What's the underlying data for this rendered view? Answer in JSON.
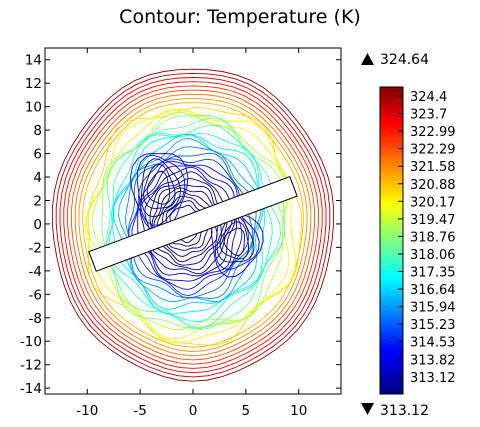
{
  "chart_data": {
    "type": "contour",
    "title": "Contour: Temperature (K)",
    "x_ticks": [
      "-10",
      "-5",
      "0",
      "5",
      "10"
    ],
    "y_ticks": [
      "14",
      "12",
      "10",
      "8",
      "6",
      "4",
      "2",
      "0",
      "-2",
      "-4",
      "-6",
      "-8",
      "-10",
      "-12",
      "-14"
    ],
    "xlim": [
      -14,
      14
    ],
    "ylim": [
      -14.5,
      15
    ],
    "domain": {
      "shape": "circle",
      "radius": 13.3,
      "center": [
        0,
        0
      ]
    },
    "inclusion": {
      "shape": "rotated rectangle",
      "from": [
        -9.5,
        -3.2
      ],
      "to": [
        9.5,
        3.2
      ],
      "width": 1.6
    },
    "colorbar": {
      "max_label": "324.64",
      "min_label": "313.12",
      "labels": [
        "324.4",
        "323.7",
        "322.99",
        "322.29",
        "321.58",
        "320.88",
        "320.17",
        "319.47",
        "318.76",
        "318.06",
        "317.35",
        "316.64",
        "315.94",
        "315.23",
        "314.53",
        "313.82",
        "313.12"
      ],
      "colormap": "rainbow",
      "colors": [
        "#800000",
        "#ff0000",
        "#ffff00",
        "#00ffff",
        "#0000ff",
        "#000080"
      ]
    },
    "value_range": [
      313.12,
      324.64
    ]
  }
}
